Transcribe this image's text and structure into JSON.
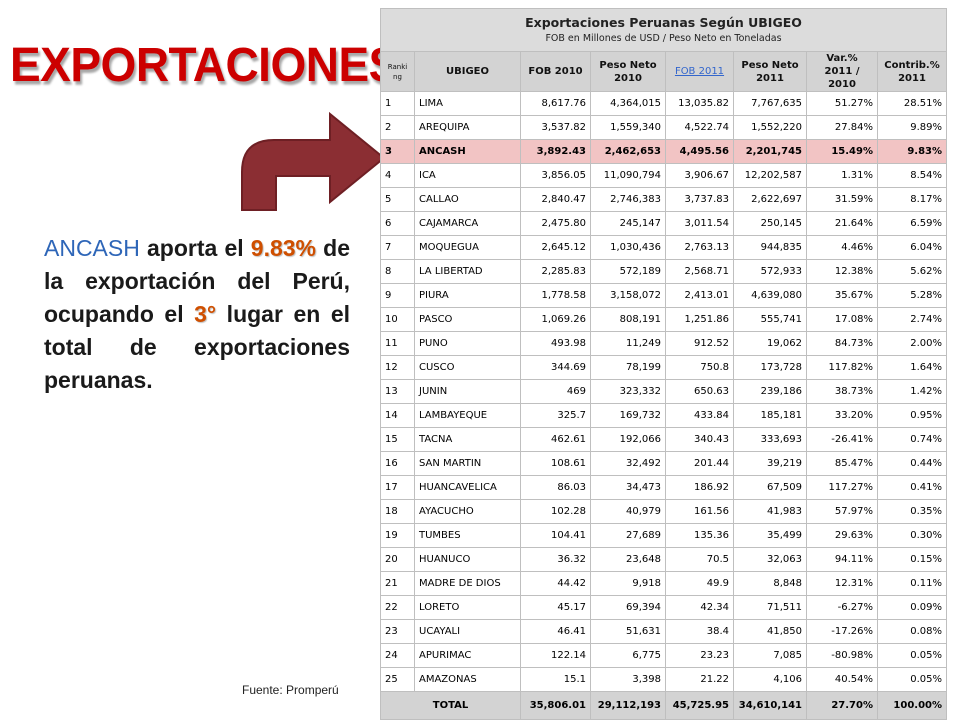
{
  "slide": {
    "title": "EXPORTACIONES",
    "text": {
      "p1": "ANCASH",
      "p2": " aporta el ",
      "p3": "9.83%",
      "p4": " de la exportación del Perú, ocupando el ",
      "p5": "3°",
      "p6": " lugar en el total de exportaciones peruanas."
    },
    "source": "Fuente: Promperú",
    "colors": {
      "title": "#cc0000",
      "arrow": "#8b2e33",
      "highlight_row": "#f2c4c4"
    },
    "icons": {
      "arrow": "bent-arrow-icon"
    }
  },
  "table": {
    "title": "Exportaciones Peruanas Según UBIGEO",
    "subtitle": "FOB en Millones de USD / Peso Neto en Toneladas",
    "headers": [
      "Ranki ng",
      "UBIGEO",
      "FOB 2010",
      "Peso Neto 2010",
      "FOB 2011",
      "Peso Neto 2011",
      "Var.% 2011 / 2010",
      "Contrib.% 2011"
    ],
    "rows": [
      [
        "1",
        "LIMA",
        "8,617.76",
        "4,364,015",
        "13,035.82",
        "7,767,635",
        "51.27%",
        "28.51%"
      ],
      [
        "2",
        "AREQUIPA",
        "3,537.82",
        "1,559,340",
        "4,522.74",
        "1,552,220",
        "27.84%",
        "9.89%"
      ],
      [
        "3",
        "ANCASH",
        "3,892.43",
        "2,462,653",
        "4,495.56",
        "2,201,745",
        "15.49%",
        "9.83%"
      ],
      [
        "4",
        "ICA",
        "3,856.05",
        "11,090,794",
        "3,906.67",
        "12,202,587",
        "1.31%",
        "8.54%"
      ],
      [
        "5",
        "CALLAO",
        "2,840.47",
        "2,746,383",
        "3,737.83",
        "2,622,697",
        "31.59%",
        "8.17%"
      ],
      [
        "6",
        "CAJAMARCA",
        "2,475.80",
        "245,147",
        "3,011.54",
        "250,145",
        "21.64%",
        "6.59%"
      ],
      [
        "7",
        "MOQUEGUA",
        "2,645.12",
        "1,030,436",
        "2,763.13",
        "944,835",
        "4.46%",
        "6.04%"
      ],
      [
        "8",
        "LA LIBERTAD",
        "2,285.83",
        "572,189",
        "2,568.71",
        "572,933",
        "12.38%",
        "5.62%"
      ],
      [
        "9",
        "PIURA",
        "1,778.58",
        "3,158,072",
        "2,413.01",
        "4,639,080",
        "35.67%",
        "5.28%"
      ],
      [
        "10",
        "PASCO",
        "1,069.26",
        "808,191",
        "1,251.86",
        "555,741",
        "17.08%",
        "2.74%"
      ],
      [
        "11",
        "PUNO",
        "493.98",
        "11,249",
        "912.52",
        "19,062",
        "84.73%",
        "2.00%"
      ],
      [
        "12",
        "CUSCO",
        "344.69",
        "78,199",
        "750.8",
        "173,728",
        "117.82%",
        "1.64%"
      ],
      [
        "13",
        "JUNIN",
        "469",
        "323,332",
        "650.63",
        "239,186",
        "38.73%",
        "1.42%"
      ],
      [
        "14",
        "LAMBAYEQUE",
        "325.7",
        "169,732",
        "433.84",
        "185,181",
        "33.20%",
        "0.95%"
      ],
      [
        "15",
        "TACNA",
        "462.61",
        "192,066",
        "340.43",
        "333,693",
        "-26.41%",
        "0.74%"
      ],
      [
        "16",
        "SAN MARTIN",
        "108.61",
        "32,492",
        "201.44",
        "39,219",
        "85.47%",
        "0.44%"
      ],
      [
        "17",
        "HUANCAVELICA",
        "86.03",
        "34,473",
        "186.92",
        "67,509",
        "117.27%",
        "0.41%"
      ],
      [
        "18",
        "AYACUCHO",
        "102.28",
        "40,979",
        "161.56",
        "41,983",
        "57.97%",
        "0.35%"
      ],
      [
        "19",
        "TUMBES",
        "104.41",
        "27,689",
        "135.36",
        "35,499",
        "29.63%",
        "0.30%"
      ],
      [
        "20",
        "HUANUCO",
        "36.32",
        "23,648",
        "70.5",
        "32,063",
        "94.11%",
        "0.15%"
      ],
      [
        "21",
        "MADRE DE DIOS",
        "44.42",
        "9,918",
        "49.9",
        "8,848",
        "12.31%",
        "0.11%"
      ],
      [
        "22",
        "LORETO",
        "45.17",
        "69,394",
        "42.34",
        "71,511",
        "-6.27%",
        "0.09%"
      ],
      [
        "23",
        "UCAYALI",
        "46.41",
        "51,631",
        "38.4",
        "41,850",
        "-17.26%",
        "0.08%"
      ],
      [
        "24",
        "APURIMAC",
        "122.14",
        "6,775",
        "23.23",
        "7,085",
        "-80.98%",
        "0.05%"
      ],
      [
        "25",
        "AMAZONAS",
        "15.1",
        "3,398",
        "21.22",
        "4,106",
        "40.54%",
        "0.05%"
      ]
    ],
    "highlight_row": "3",
    "total": [
      "TOTAL",
      "35,806.01",
      "29,112,193",
      "45,725.95",
      "34,610,141",
      "27.70%",
      "100.00%"
    ]
  }
}
